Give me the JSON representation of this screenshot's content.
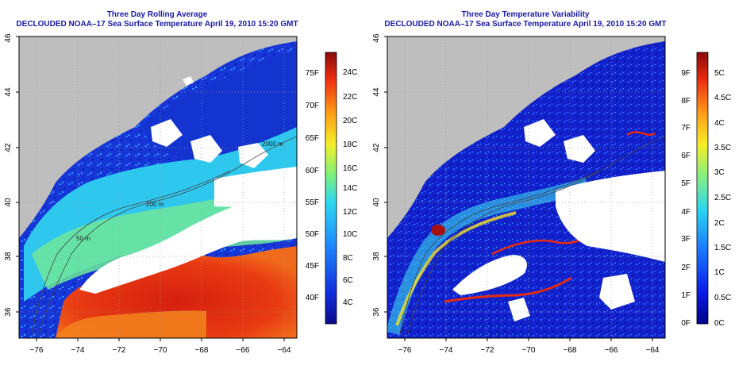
{
  "left_panel": {
    "title": "Three Day Rolling Average",
    "subtitle": "DECLOUDED NOAA–17 Sea Surface Temperature April 19, 2010 15:20 GMT",
    "colorbar_f": [
      "75F",
      "70F",
      "65F",
      "60F",
      "55F",
      "50F",
      "45F",
      "40F"
    ],
    "colorbar_c": [
      "24C",
      "22C",
      "20C",
      "18C",
      "16C",
      "14C",
      "12C",
      "10C",
      "8C",
      "6C",
      "4C"
    ],
    "contours": [
      "200 m",
      "200 m",
      "50 m",
      "2000 m"
    ]
  },
  "right_panel": {
    "title": "Three Day Temperature Variability",
    "subtitle": "DECLOUDED NOAA–17 Sea Surface Temperature April 19, 2010 15:20 GMT",
    "colorbar_f": [
      "9F",
      "8F",
      "7F",
      "6F",
      "5F",
      "4F",
      "3F",
      "2F",
      "1F",
      "0F"
    ],
    "colorbar_c": [
      "5C",
      "4.5C",
      "4C",
      "3.5C",
      "3C",
      "2.5C",
      "2C",
      "1.5C",
      "1C",
      "0.5C",
      "0C"
    ]
  },
  "axes": {
    "x_ticks": [
      "−76",
      "−74",
      "−72",
      "−70",
      "−68",
      "−66",
      "−64"
    ],
    "y_ticks": [
      "36",
      "38",
      "40",
      "42",
      "44",
      "46"
    ]
  },
  "colors": {
    "title": "#1a1aa8",
    "land": "#bebebe",
    "cloud": "#ffffff"
  }
}
